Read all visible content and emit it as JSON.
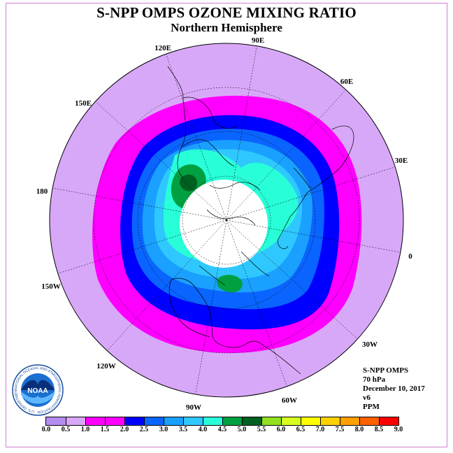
{
  "title": "S-NPP OMPS OZONE MIXING RATIO",
  "subtitle": "Northern Hemisphere",
  "longitude_labels": [
    "90E",
    "60E",
    "30E",
    "0",
    "30W",
    "60W",
    "90W",
    "120W",
    "150W",
    "180",
    "150E",
    "120E"
  ],
  "info": {
    "instrument": "S-NPP OMPS",
    "level": "70 hPa",
    "date": "December 10, 2017",
    "version": "v6",
    "units": "PPM"
  },
  "colorbar": {
    "ticks": [
      "0.0",
      "0.5",
      "1.0",
      "1.5",
      "2.0",
      "2.5",
      "3.0",
      "3.5",
      "4.0",
      "4.5",
      "5.0",
      "5.5",
      "6.0",
      "6.5",
      "7.0",
      "7.5",
      "8.0",
      "8.5",
      "9.0"
    ],
    "colors": [
      "#b48cf0",
      "#d8a8f8",
      "#ff00ff",
      "#ff00ff",
      "#0000ff",
      "#0a64ff",
      "#1aa0ff",
      "#2ec8ff",
      "#28ffd8",
      "#00a040",
      "#006020",
      "#90e020",
      "#d8ff20",
      "#ffff00",
      "#ffd000",
      "#ffa000",
      "#ff6000",
      "#ff0000",
      "#905020"
    ]
  },
  "logo": {
    "text": "NOAA",
    "ring_text": "NATIONAL OCEANIC AND ATMOSPHERIC ADMINISTRATION · U.S. DEPARTMENT OF COMMERCE"
  },
  "colors": {
    "outer_band": "#d8a8f8",
    "magenta_band": "#ff00ff",
    "blue_band": "#0000ff",
    "cyan_band": "#28ffd8",
    "green_core": "#00a040",
    "polar_night": "#ffffff"
  }
}
